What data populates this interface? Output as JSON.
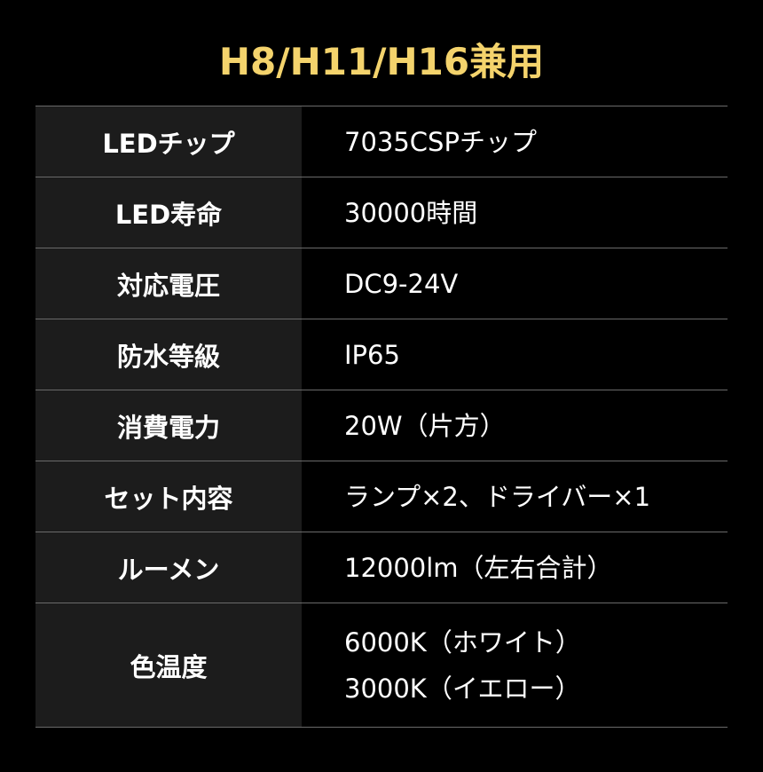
{
  "title": "H8/H11/H16兼用",
  "colors": {
    "title": "#f4d36c",
    "label_bg": "#1c1c1c",
    "background": "#000000",
    "divider": "#6a6a6a"
  },
  "specs": [
    {
      "label": "LEDチップ",
      "values": [
        "7035CSPチップ"
      ]
    },
    {
      "label": "LED寿命",
      "values": [
        "30000時間"
      ]
    },
    {
      "label": "対応電圧",
      "values": [
        "DC9-24V"
      ]
    },
    {
      "label": "防水等級",
      "values": [
        "IP65"
      ]
    },
    {
      "label": "消費電力",
      "values": [
        "20W（片方）"
      ]
    },
    {
      "label": "セット内容",
      "values": [
        "ランプ×2、ドライバー×1"
      ]
    },
    {
      "label": "ルーメン",
      "values": [
        "12000lm（左右合計）"
      ]
    },
    {
      "label": "色温度",
      "values": [
        "6000K（ホワイト）",
        "3000K（イエロー）"
      ]
    }
  ]
}
